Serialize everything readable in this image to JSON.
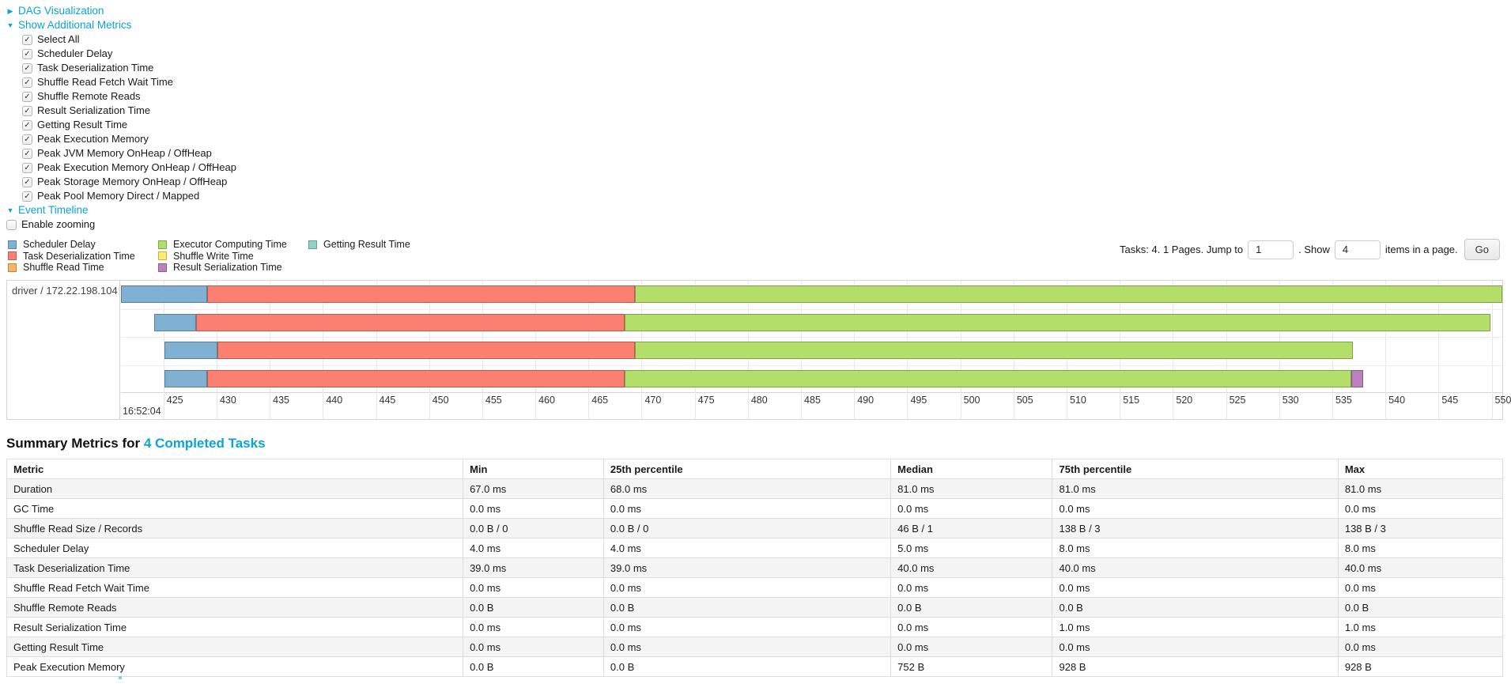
{
  "colors": {
    "link": "#0ba3d9",
    "grid": "#e7e7e7",
    "chart_border": "#d4d4d4",
    "stripe": "#f4f4f4"
  },
  "sections": {
    "dag": {
      "label": "DAG Visualization",
      "arrow": "▶"
    },
    "metrics": {
      "label": "Show Additional Metrics",
      "arrow": "▼"
    },
    "event_timeline": {
      "label": "Event Timeline",
      "arrow": "▼"
    },
    "enable_zooming": {
      "label": "Enable zooming",
      "checked": false
    }
  },
  "metric_checkboxes": [
    {
      "label": "Select All",
      "checked": true
    },
    {
      "label": "Scheduler Delay",
      "checked": true
    },
    {
      "label": "Task Deserialization Time",
      "checked": true
    },
    {
      "label": "Shuffle Read Fetch Wait Time",
      "checked": true
    },
    {
      "label": "Shuffle Remote Reads",
      "checked": true
    },
    {
      "label": "Result Serialization Time",
      "checked": true
    },
    {
      "label": "Getting Result Time",
      "checked": true
    },
    {
      "label": "Peak Execution Memory",
      "checked": true
    },
    {
      "label": "Peak JVM Memory OnHeap / OffHeap",
      "checked": true
    },
    {
      "label": "Peak Execution Memory OnHeap / OffHeap",
      "checked": true
    },
    {
      "label": "Peak Storage Memory OnHeap / OffHeap",
      "checked": true
    },
    {
      "label": "Peak Pool Memory Direct / Mapped",
      "checked": true
    }
  ],
  "pagination": {
    "tasks_text": "Tasks: 4. 1 Pages. Jump to",
    "jump_value": "1",
    "show_text": ". Show",
    "show_value": "4",
    "items_text": "items in a page.",
    "go_label": "Go"
  },
  "chart_data": {
    "type": "timeline",
    "group_label": "driver / 172.22.198.104",
    "x_start_time_label": "16:52:04",
    "x_domain": [
      421,
      551
    ],
    "ticks": [
      425,
      430,
      435,
      440,
      445,
      450,
      455,
      460,
      465,
      470,
      475,
      480,
      485,
      490,
      495,
      500,
      505,
      510,
      515,
      520,
      525,
      530,
      535,
      540,
      545,
      550
    ],
    "legend": [
      {
        "key": "scheduler_delay",
        "label": "Scheduler Delay",
        "color": "#80B1D3",
        "column": 0
      },
      {
        "key": "task_deserialization",
        "label": "Task Deserialization Time",
        "color": "#FB8072",
        "column": 0
      },
      {
        "key": "shuffle_read",
        "label": "Shuffle Read Time",
        "color": "#FDB462",
        "column": 0
      },
      {
        "key": "executor_computing",
        "label": "Executor Computing Time",
        "color": "#B3DE69",
        "column": 1
      },
      {
        "key": "shuffle_write",
        "label": "Shuffle Write Time",
        "color": "#FFED6F",
        "column": 1
      },
      {
        "key": "result_serialization",
        "label": "Result Serialization Time",
        "color": "#BC80BD",
        "column": 1
      },
      {
        "key": "getting_result",
        "label": "Getting Result Time",
        "color": "#8DD3C7",
        "column": 2
      }
    ],
    "rows": [
      {
        "segments": [
          {
            "key": "scheduler_delay",
            "start": 421.0,
            "end": 429.1
          },
          {
            "key": "task_deserialization",
            "start": 429.1,
            "end": 469.4
          },
          {
            "key": "executor_computing",
            "start": 469.4,
            "end": 551.0
          }
        ]
      },
      {
        "segments": [
          {
            "key": "scheduler_delay",
            "start": 424.1,
            "end": 428.1
          },
          {
            "key": "task_deserialization",
            "start": 428.1,
            "end": 468.4
          },
          {
            "key": "executor_computing",
            "start": 468.4,
            "end": 549.9
          }
        ]
      },
      {
        "segments": [
          {
            "key": "scheduler_delay",
            "start": 425.1,
            "end": 430.1
          },
          {
            "key": "task_deserialization",
            "start": 430.1,
            "end": 469.4
          },
          {
            "key": "executor_computing",
            "start": 469.4,
            "end": 536.9
          }
        ]
      },
      {
        "segments": [
          {
            "key": "scheduler_delay",
            "start": 425.1,
            "end": 429.1
          },
          {
            "key": "task_deserialization",
            "start": 429.1,
            "end": 468.4
          },
          {
            "key": "executor_computing",
            "start": 468.4,
            "end": 536.8
          },
          {
            "key": "result_serialization",
            "start": 536.8,
            "end": 537.9
          }
        ]
      }
    ]
  },
  "summary": {
    "heading_prefix": "Summary Metrics for",
    "heading_link": "4 Completed Tasks",
    "columns": [
      "Metric",
      "Min",
      "25th percentile",
      "Median",
      "75th percentile",
      "Max"
    ],
    "col_widths": [
      "30.5%",
      "9.4%",
      "19.2%",
      "10.8%",
      "19.1%",
      "11%"
    ],
    "rows": [
      {
        "metric": "Duration",
        "values": [
          "67.0 ms",
          "68.0 ms",
          "81.0 ms",
          "81.0 ms",
          "81.0 ms"
        ]
      },
      {
        "metric": "GC Time",
        "values": [
          "0.0 ms",
          "0.0 ms",
          "0.0 ms",
          "0.0 ms",
          "0.0 ms"
        ]
      },
      {
        "metric": "Shuffle Read Size / Records",
        "values": [
          "0.0 B / 0",
          "0.0 B / 0",
          "46 B / 1",
          "138 B / 3",
          "138 B / 3"
        ]
      },
      {
        "metric": "Scheduler Delay",
        "values": [
          "4.0 ms",
          "4.0 ms",
          "5.0 ms",
          "8.0 ms",
          "8.0 ms"
        ]
      },
      {
        "metric": "Task Deserialization Time",
        "values": [
          "39.0 ms",
          "39.0 ms",
          "40.0 ms",
          "40.0 ms",
          "40.0 ms"
        ]
      },
      {
        "metric": "Shuffle Read Fetch Wait Time",
        "values": [
          "0.0 ms",
          "0.0 ms",
          "0.0 ms",
          "0.0 ms",
          "0.0 ms"
        ]
      },
      {
        "metric": "Shuffle Remote Reads",
        "values": [
          "0.0 B",
          "0.0 B",
          "0.0 B",
          "0.0 B",
          "0.0 B"
        ]
      },
      {
        "metric": "Result Serialization Time",
        "values": [
          "0.0 ms",
          "0.0 ms",
          "0.0 ms",
          "1.0 ms",
          "1.0 ms"
        ]
      },
      {
        "metric": "Getting Result Time",
        "values": [
          "0.0 ms",
          "0.0 ms",
          "0.0 ms",
          "0.0 ms",
          "0.0 ms"
        ]
      },
      {
        "metric": "Peak Execution Memory",
        "values": [
          "0.0 B",
          "0.0 B",
          "752 B",
          "928 B",
          "928 B"
        ]
      }
    ]
  }
}
